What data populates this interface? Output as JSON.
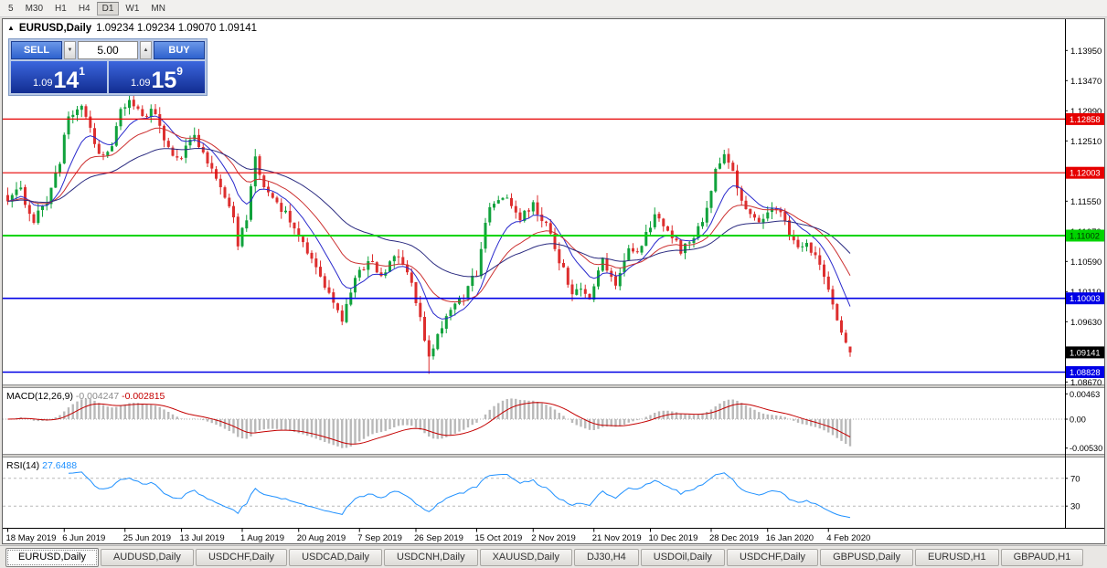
{
  "header": {
    "toggle_glyph": "▲",
    "symbol": "EURUSD,Daily",
    "ohlc": "1.09234 1.09234 1.09070 1.09141"
  },
  "toolbar": {
    "timeframes": [
      "5",
      "M30",
      "H1",
      "H4",
      "D1",
      "W1",
      "MN"
    ],
    "active": "D1"
  },
  "trade_panel": {
    "sell_label": "SELL",
    "buy_label": "BUY",
    "volume": "5.00",
    "volume_down_glyph": "▼",
    "volume_up_glyph": "▲",
    "sell_small": "1.09",
    "sell_big": "14",
    "sell_sup": "1",
    "buy_small": "1.09",
    "buy_big": "15",
    "buy_sup": "9"
  },
  "indicators": {
    "macd": {
      "title": "MACD(12,26,9)",
      "value1": "-0.004247",
      "value2": "-0.002815"
    },
    "rsi": {
      "title": "RSI(14)",
      "value": "27.6488"
    }
  },
  "tabs": [
    {
      "label": "EURUSD,Daily",
      "active": true
    },
    {
      "label": "AUDUSD,Daily",
      "active": false
    },
    {
      "label": "USDCHF,Daily",
      "active": false
    },
    {
      "label": "USDCAD,Daily",
      "active": false
    },
    {
      "label": "USDCNH,Daily",
      "active": false
    },
    {
      "label": "XAUUSD,Daily",
      "active": false
    },
    {
      "label": "DJ30,H4",
      "active": false
    },
    {
      "label": "USDOil,Daily",
      "active": false
    },
    {
      "label": "USDCHF,Daily",
      "active": false
    },
    {
      "label": "GBPUSD,Daily",
      "active": false
    },
    {
      "label": "EURUSD,H1",
      "active": false
    },
    {
      "label": "GBPAUD,H1",
      "active": false
    }
  ],
  "colors": {
    "candle_up": "#11a23c",
    "candle_down": "#dd2e2e",
    "panel_blue": "#2e62ce",
    "axis_text": "#000000"
  },
  "chart_data": {
    "type": "candlestick",
    "symbol": "EURUSD",
    "timeframe": "Daily",
    "num_candles": 195,
    "last_candle": {
      "open": 1.09234,
      "high": 1.09234,
      "low": 1.0907,
      "close": 1.09141
    },
    "price_axis": {
      "min": 1.0866,
      "max": 1.1442,
      "labels": [
        "1.13950",
        "1.13470",
        "1.12990",
        "1.12510",
        "1.12030",
        "1.11550",
        "1.11070",
        "1.10590",
        "1.10110",
        "1.09630",
        "1.09150",
        "1.08670"
      ]
    },
    "horizontal_levels": [
      {
        "label": "1.12858",
        "value": 1.12858,
        "color": "#e60000",
        "width": 1.2,
        "text_color": "#ffffff"
      },
      {
        "label": "1.12003",
        "value": 1.12003,
        "color": "#e60000",
        "width": 1.2,
        "text_color": "#ffffff"
      },
      {
        "label": "1.11002",
        "value": 1.11002,
        "color": "#00d400",
        "width": 2,
        "text_color": "#003300"
      },
      {
        "label": "1.10003",
        "value": 1.10003,
        "color": "#0000e6",
        "width": 1.6,
        "text_color": "#ffffff"
      },
      {
        "label": "1.08828",
        "value": 1.08828,
        "color": "#0000e6",
        "width": 1.6,
        "text_color": "#ffffff"
      }
    ],
    "current_price_badge": {
      "label": "1.09141",
      "bg": "#000000",
      "text_color": "#ffffff"
    },
    "moving_averages": [
      {
        "period": 10,
        "color": "#2929cc"
      },
      {
        "period": 21,
        "color": "#cc3030"
      },
      {
        "period": 45,
        "color": "#2b2b80"
      }
    ],
    "macd": {
      "params": [
        12,
        26,
        9
      ],
      "histogram_color": "#b9b9b9",
      "signal_color": "#c40000",
      "axis": [
        {
          "label": "0.00463",
          "value": 0.00463
        },
        {
          "label": "0.00",
          "value": 0
        },
        {
          "label": "-0.00530",
          "value": -0.0053
        }
      ]
    },
    "rsi": {
      "period": 14,
      "color": "#1e90ff",
      "levels": [
        {
          "label": "70",
          "value": 70
        },
        {
          "label": "30",
          "value": 30
        }
      ]
    },
    "date_axis": {
      "labels": [
        "18 May 2019",
        "6 Jun 2019",
        "25 Jun 2019",
        "13 Jul 2019",
        "1 Aug 2019",
        "20 Aug 2019",
        "7 Sep 2019",
        "26 Sep 2019",
        "15 Oct 2019",
        "2 Nov 2019",
        "21 Nov 2019",
        "10 Dec 2019",
        "28 Dec 2019",
        "16 Jan 2020",
        "4 Feb 2020"
      ],
      "candle_indices": [
        0,
        13,
        27,
        40,
        54,
        67,
        81,
        94,
        108,
        121,
        135,
        148,
        162,
        175,
        189
      ]
    },
    "close_anchors": [
      [
        0,
        1.1155
      ],
      [
        3,
        1.1172
      ],
      [
        6,
        1.1124
      ],
      [
        9,
        1.115
      ],
      [
        12,
        1.122
      ],
      [
        14,
        1.1292
      ],
      [
        17,
        1.1308
      ],
      [
        19,
        1.1268
      ],
      [
        21,
        1.1226
      ],
      [
        24,
        1.1248
      ],
      [
        26,
        1.1302
      ],
      [
        28,
        1.1312
      ],
      [
        31,
        1.1288
      ],
      [
        34,
        1.13
      ],
      [
        36,
        1.1252
      ],
      [
        38,
        1.123
      ],
      [
        40,
        1.1228
      ],
      [
        43,
        1.1262
      ],
      [
        46,
        1.1218
      ],
      [
        49,
        1.118
      ],
      [
        52,
        1.113
      ],
      [
        53,
        1.1085
      ],
      [
        55,
        1.1132
      ],
      [
        57,
        1.1226
      ],
      [
        59,
        1.1178
      ],
      [
        62,
        1.115
      ],
      [
        65,
        1.1124
      ],
      [
        68,
        1.1092
      ],
      [
        72,
        1.104
      ],
      [
        75,
        1.0992
      ],
      [
        77,
        1.0964
      ],
      [
        80,
        1.103
      ],
      [
        83,
        1.1062
      ],
      [
        86,
        1.1036
      ],
      [
        89,
        1.1072
      ],
      [
        93,
        1.1022
      ],
      [
        95,
        1.0972
      ],
      [
        97,
        1.0902
      ],
      [
        100,
        1.0958
      ],
      [
        102,
        1.0986
      ],
      [
        105,
        1.1002
      ],
      [
        108,
        1.1042
      ],
      [
        111,
        1.115
      ],
      [
        115,
        1.1162
      ],
      [
        118,
        1.1132
      ],
      [
        121,
        1.1152
      ],
      [
        124,
        1.1116
      ],
      [
        127,
        1.1062
      ],
      [
        130,
        1.1012
      ],
      [
        134,
        1.1006
      ],
      [
        137,
        1.1062
      ],
      [
        140,
        1.1022
      ],
      [
        143,
        1.1076
      ],
      [
        146,
        1.1082
      ],
      [
        149,
        1.1132
      ],
      [
        152,
        1.1112
      ],
      [
        155,
        1.1076
      ],
      [
        157,
        1.1086
      ],
      [
        160,
        1.112
      ],
      [
        163,
        1.12
      ],
      [
        165,
        1.1226
      ],
      [
        168,
        1.1182
      ],
      [
        170,
        1.1142
      ],
      [
        173,
        1.1116
      ],
      [
        176,
        1.115
      ],
      [
        178,
        1.1132
      ],
      [
        181,
        1.1092
      ],
      [
        184,
        1.1082
      ],
      [
        186,
        1.1062
      ],
      [
        188,
        1.1032
      ],
      [
        190,
        1.0992
      ],
      [
        192,
        1.0952
      ],
      [
        194,
        1.0914
      ]
    ]
  }
}
